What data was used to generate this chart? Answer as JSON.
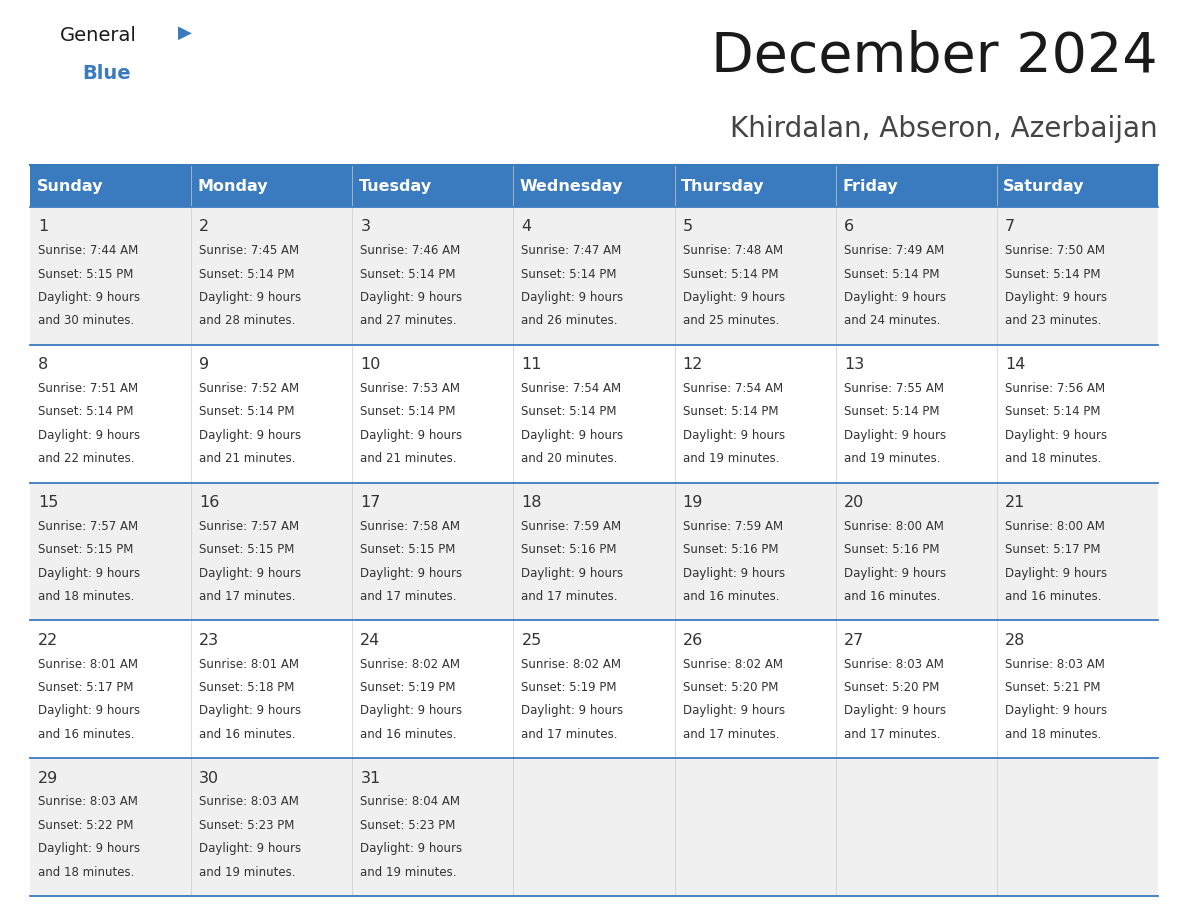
{
  "title": "December 2024",
  "subtitle": "Khirdalan, Abseron, Azerbaijan",
  "days_of_week": [
    "Sunday",
    "Monday",
    "Tuesday",
    "Wednesday",
    "Thursday",
    "Friday",
    "Saturday"
  ],
  "header_bg": "#3a7abf",
  "header_text": "#ffffff",
  "row_bg_even": "#f0f0f0",
  "row_bg_odd": "#ffffff",
  "cell_border": "#3a7abf",
  "day_num_color": "#333333",
  "cell_text_color": "#333333",
  "calendar": [
    [
      {
        "day": 1,
        "sunrise": "7:44 AM",
        "sunset": "5:15 PM",
        "daylight": "9 hours and 30 minutes."
      },
      {
        "day": 2,
        "sunrise": "7:45 AM",
        "sunset": "5:14 PM",
        "daylight": "9 hours and 28 minutes."
      },
      {
        "day": 3,
        "sunrise": "7:46 AM",
        "sunset": "5:14 PM",
        "daylight": "9 hours and 27 minutes."
      },
      {
        "day": 4,
        "sunrise": "7:47 AM",
        "sunset": "5:14 PM",
        "daylight": "9 hours and 26 minutes."
      },
      {
        "day": 5,
        "sunrise": "7:48 AM",
        "sunset": "5:14 PM",
        "daylight": "9 hours and 25 minutes."
      },
      {
        "day": 6,
        "sunrise": "7:49 AM",
        "sunset": "5:14 PM",
        "daylight": "9 hours and 24 minutes."
      },
      {
        "day": 7,
        "sunrise": "7:50 AM",
        "sunset": "5:14 PM",
        "daylight": "9 hours and 23 minutes."
      }
    ],
    [
      {
        "day": 8,
        "sunrise": "7:51 AM",
        "sunset": "5:14 PM",
        "daylight": "9 hours and 22 minutes."
      },
      {
        "day": 9,
        "sunrise": "7:52 AM",
        "sunset": "5:14 PM",
        "daylight": "9 hours and 21 minutes."
      },
      {
        "day": 10,
        "sunrise": "7:53 AM",
        "sunset": "5:14 PM",
        "daylight": "9 hours and 21 minutes."
      },
      {
        "day": 11,
        "sunrise": "7:54 AM",
        "sunset": "5:14 PM",
        "daylight": "9 hours and 20 minutes."
      },
      {
        "day": 12,
        "sunrise": "7:54 AM",
        "sunset": "5:14 PM",
        "daylight": "9 hours and 19 minutes."
      },
      {
        "day": 13,
        "sunrise": "7:55 AM",
        "sunset": "5:14 PM",
        "daylight": "9 hours and 19 minutes."
      },
      {
        "day": 14,
        "sunrise": "7:56 AM",
        "sunset": "5:14 PM",
        "daylight": "9 hours and 18 minutes."
      }
    ],
    [
      {
        "day": 15,
        "sunrise": "7:57 AM",
        "sunset": "5:15 PM",
        "daylight": "9 hours and 18 minutes."
      },
      {
        "day": 16,
        "sunrise": "7:57 AM",
        "sunset": "5:15 PM",
        "daylight": "9 hours and 17 minutes."
      },
      {
        "day": 17,
        "sunrise": "7:58 AM",
        "sunset": "5:15 PM",
        "daylight": "9 hours and 17 minutes."
      },
      {
        "day": 18,
        "sunrise": "7:59 AM",
        "sunset": "5:16 PM",
        "daylight": "9 hours and 17 minutes."
      },
      {
        "day": 19,
        "sunrise": "7:59 AM",
        "sunset": "5:16 PM",
        "daylight": "9 hours and 16 minutes."
      },
      {
        "day": 20,
        "sunrise": "8:00 AM",
        "sunset": "5:16 PM",
        "daylight": "9 hours and 16 minutes."
      },
      {
        "day": 21,
        "sunrise": "8:00 AM",
        "sunset": "5:17 PM",
        "daylight": "9 hours and 16 minutes."
      }
    ],
    [
      {
        "day": 22,
        "sunrise": "8:01 AM",
        "sunset": "5:17 PM",
        "daylight": "9 hours and 16 minutes."
      },
      {
        "day": 23,
        "sunrise": "8:01 AM",
        "sunset": "5:18 PM",
        "daylight": "9 hours and 16 minutes."
      },
      {
        "day": 24,
        "sunrise": "8:02 AM",
        "sunset": "5:19 PM",
        "daylight": "9 hours and 16 minutes."
      },
      {
        "day": 25,
        "sunrise": "8:02 AM",
        "sunset": "5:19 PM",
        "daylight": "9 hours and 17 minutes."
      },
      {
        "day": 26,
        "sunrise": "8:02 AM",
        "sunset": "5:20 PM",
        "daylight": "9 hours and 17 minutes."
      },
      {
        "day": 27,
        "sunrise": "8:03 AM",
        "sunset": "5:20 PM",
        "daylight": "9 hours and 17 minutes."
      },
      {
        "day": 28,
        "sunrise": "8:03 AM",
        "sunset": "5:21 PM",
        "daylight": "9 hours and 18 minutes."
      }
    ],
    [
      {
        "day": 29,
        "sunrise": "8:03 AM",
        "sunset": "5:22 PM",
        "daylight": "9 hours and 18 minutes."
      },
      {
        "day": 30,
        "sunrise": "8:03 AM",
        "sunset": "5:23 PM",
        "daylight": "9 hours and 19 minutes."
      },
      {
        "day": 31,
        "sunrise": "8:04 AM",
        "sunset": "5:23 PM",
        "daylight": "9 hours and 19 minutes."
      },
      null,
      null,
      null,
      null
    ]
  ],
  "fig_width": 11.88,
  "fig_height": 9.18,
  "dpi": 100
}
